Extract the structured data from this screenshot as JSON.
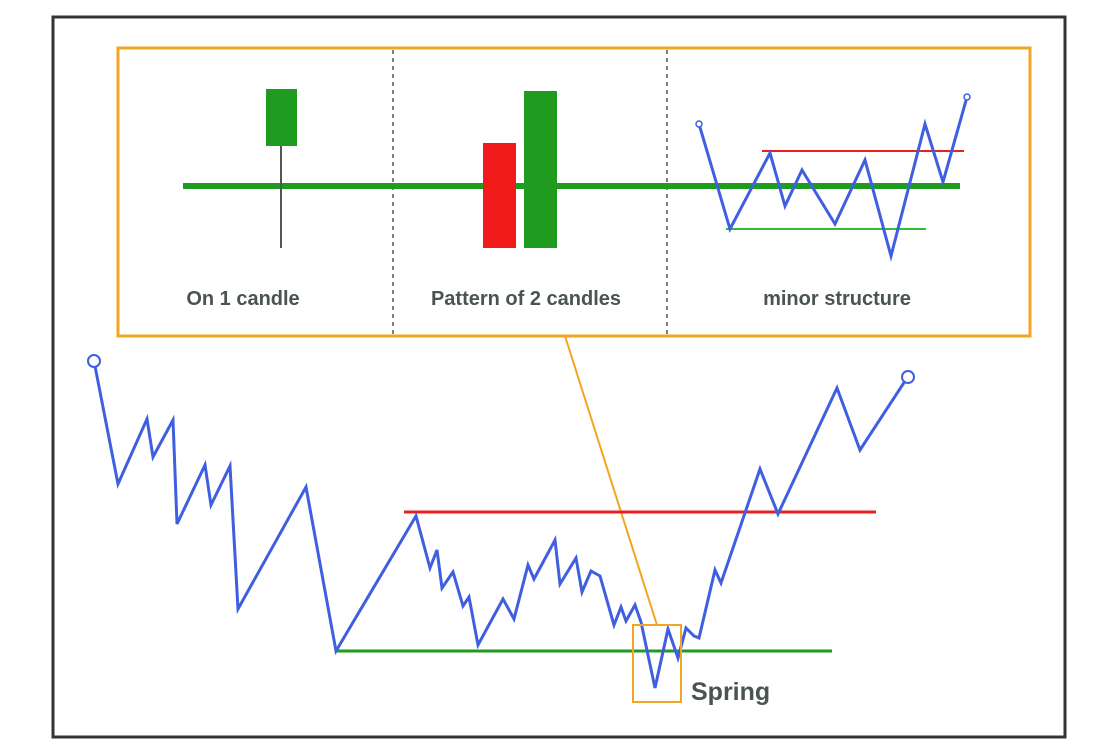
{
  "colors": {
    "frame": "#333333",
    "inset_border": "#f0a623",
    "price_line": "#3f5fe0",
    "resistance": "#e82020",
    "support": "#1f9c1f",
    "bull_candle": "#1f9c1f",
    "bear_candle": "#f01a1a",
    "wick": "#555555",
    "divider": "#555555",
    "label_text": "#4a5452"
  },
  "inset": {
    "panels": [
      {
        "label": "On 1 candle",
        "illustration": "single-green-candle-wick-below-support"
      },
      {
        "label": "Pattern of 2 candles",
        "illustration": "red-candle-then-green-candle"
      },
      {
        "label": "minor structure",
        "illustration": "minor-range-false-break"
      }
    ]
  },
  "main": {
    "spring_label": "Spring",
    "annotations": [
      "support-line",
      "resistance-line",
      "spring-highlight-box",
      "zoom-connector"
    ]
  }
}
